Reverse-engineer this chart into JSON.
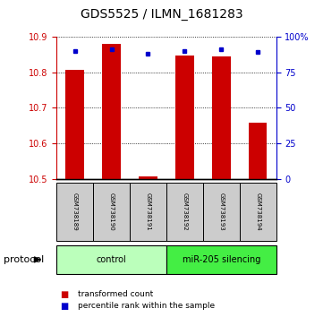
{
  "title": "GDS5525 / ILMN_1681283",
  "samples": [
    "GSM738189",
    "GSM738190",
    "GSM738191",
    "GSM738192",
    "GSM738193",
    "GSM738194"
  ],
  "red_values": [
    10.806,
    10.878,
    10.507,
    10.847,
    10.843,
    10.657
  ],
  "blue_values": [
    90,
    91,
    88,
    90,
    91,
    89
  ],
  "ylim_left": [
    10.5,
    10.9
  ],
  "ylim_right": [
    0,
    100
  ],
  "yticks_left": [
    10.5,
    10.6,
    10.7,
    10.8,
    10.9
  ],
  "yticks_right": [
    0,
    25,
    50,
    75,
    100
  ],
  "yticklabels_right": [
    "0",
    "25",
    "50",
    "75",
    "100%"
  ],
  "protocol_groups": [
    {
      "label": "control",
      "indices": [
        0,
        1,
        2
      ],
      "color": "#bbffbb"
    },
    {
      "label": "miR-205 silencing",
      "indices": [
        3,
        4,
        5
      ],
      "color": "#44ee44"
    }
  ],
  "bar_color": "#cc0000",
  "dot_color": "#0000cc",
  "tick_color_left": "#cc0000",
  "tick_color_right": "#0000cc",
  "legend_items": [
    {
      "label": "transformed count",
      "color": "#cc0000"
    },
    {
      "label": "percentile rank within the sample",
      "color": "#0000cc"
    }
  ],
  "protocol_label": "protocol",
  "bar_width": 0.5,
  "title_fontsize": 10,
  "tick_fontsize": 7,
  "sample_fontsize": 5,
  "proto_fontsize": 7,
  "legend_fontsize": 6.5
}
